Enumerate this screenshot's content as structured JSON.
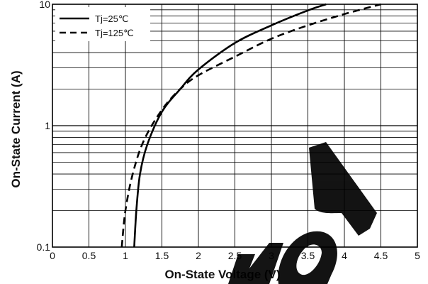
{
  "chart_data": {
    "type": "line",
    "xlabel": "On-State Voltage (V)",
    "ylabel": "On-State Current (A)",
    "xlim": [
      0,
      5
    ],
    "ylim": [
      0.1,
      10
    ],
    "y_scale": "log",
    "grid": true,
    "legend_position": "top-left",
    "x_ticks": [
      "0",
      "0.5",
      "1",
      "1.5",
      "2",
      "2.5",
      "3",
      "3.5",
      "4",
      "4.5",
      "5"
    ],
    "y_ticks": [
      "0.1",
      "1",
      "10"
    ],
    "series": [
      {
        "name": "Tj=25℃",
        "style": "solid",
        "color": "#000000",
        "points": [
          [
            1.12,
            0.1
          ],
          [
            1.15,
            0.2
          ],
          [
            1.2,
            0.4
          ],
          [
            1.3,
            0.7
          ],
          [
            1.5,
            1.3
          ],
          [
            1.75,
            2.0
          ],
          [
            2.0,
            2.9
          ],
          [
            2.5,
            4.8
          ],
          [
            3.0,
            6.7
          ],
          [
            3.5,
            8.9
          ],
          [
            3.75,
            10
          ]
        ]
      },
      {
        "name": "Tj=125℃",
        "style": "dashed",
        "color": "#000000",
        "points": [
          [
            0.95,
            0.1
          ],
          [
            1.0,
            0.2
          ],
          [
            1.1,
            0.4
          ],
          [
            1.25,
            0.75
          ],
          [
            1.5,
            1.35
          ],
          [
            1.75,
            2.0
          ],
          [
            2.0,
            2.6
          ],
          [
            2.5,
            3.7
          ],
          [
            3.0,
            5.2
          ],
          [
            3.5,
            6.7
          ],
          [
            4.0,
            8.3
          ],
          [
            4.5,
            10
          ]
        ]
      }
    ]
  }
}
